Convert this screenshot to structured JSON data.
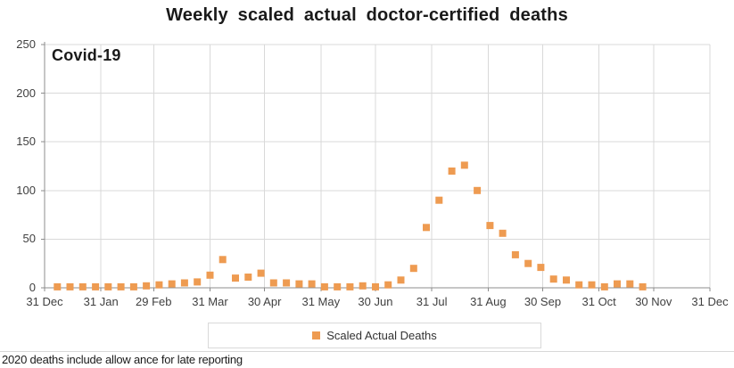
{
  "title": "Weekly scaled actual doctor-certified deaths",
  "plot_area_label": "Covid-19",
  "legend": {
    "label": "Scaled Actual Deaths"
  },
  "footnote": "2020 deaths include allow ance for late reporting",
  "colors": {
    "marker": "#ee9b51",
    "gridline": "#d9d9d9",
    "axis": "#8c8c8c",
    "tick_text": "#3f3f3f",
    "title_text": "#1a1a1a",
    "legend_border": "#d9d9d9"
  },
  "chart_data": {
    "type": "scatter",
    "title": "Weekly scaled actual doctor-certified deaths",
    "annotation": "Covid-19",
    "grid": true,
    "legend_position": "bottom",
    "x_axis": {
      "tick_labels": [
        "31 Dec",
        "31 Jan",
        "29 Feb",
        "31 Mar",
        "30 Apr",
        "31 May",
        "30 Jun",
        "31 Jul",
        "31 Aug",
        "30 Sep",
        "31 Oct",
        "30 Nov",
        "31 Dec"
      ],
      "tick_days": [
        0,
        31,
        60,
        91,
        121,
        152,
        182,
        213,
        244,
        274,
        305,
        335,
        366
      ],
      "range_days": [
        0,
        366
      ]
    },
    "y_axis": {
      "ticks": [
        0,
        50,
        100,
        150,
        200,
        250
      ],
      "range": [
        0,
        250
      ]
    },
    "series": [
      {
        "name": "Scaled Actual Deaths",
        "marker": "square",
        "color": "#ee9b51",
        "dates": [
          "7 Jan",
          "14 Jan",
          "21 Jan",
          "28 Jan",
          "4 Feb",
          "11 Feb",
          "18 Feb",
          "25 Feb",
          "3 Mar",
          "10 Mar",
          "17 Mar",
          "24 Mar",
          "31 Mar",
          "7 Apr",
          "14 Apr",
          "21 Apr",
          "28 Apr",
          "5 May",
          "12 May",
          "19 May",
          "26 May",
          "2 Jun",
          "9 Jun",
          "16 Jun",
          "23 Jun",
          "30 Jun",
          "7 Jul",
          "14 Jul",
          "21 Jul",
          "28 Jul",
          "4 Aug",
          "11 Aug",
          "18 Aug",
          "25 Aug",
          "1 Sep",
          "8 Sep",
          "15 Sep",
          "22 Sep",
          "29 Sep",
          "6 Oct",
          "13 Oct",
          "20 Oct",
          "27 Oct",
          "3 Nov",
          "10 Nov",
          "17 Nov",
          "24 Nov"
        ],
        "days": [
          7,
          14,
          21,
          28,
          35,
          42,
          49,
          56,
          63,
          70,
          77,
          84,
          91,
          98,
          105,
          112,
          119,
          126,
          133,
          140,
          147,
          154,
          161,
          168,
          175,
          182,
          189,
          196,
          203,
          210,
          217,
          224,
          231,
          238,
          245,
          252,
          259,
          266,
          273,
          280,
          287,
          294,
          301,
          308,
          315,
          322,
          329
        ],
        "values": [
          1,
          1,
          1,
          1,
          1,
          1,
          1,
          2,
          3,
          4,
          5,
          6,
          13,
          29,
          10,
          11,
          15,
          5,
          5,
          4,
          4,
          1,
          1,
          1,
          2,
          1,
          3,
          8,
          20,
          62,
          90,
          120,
          126,
          100,
          64,
          56,
          34,
          25,
          21,
          9,
          8,
          3,
          3,
          1,
          4,
          4,
          1
        ]
      }
    ]
  }
}
